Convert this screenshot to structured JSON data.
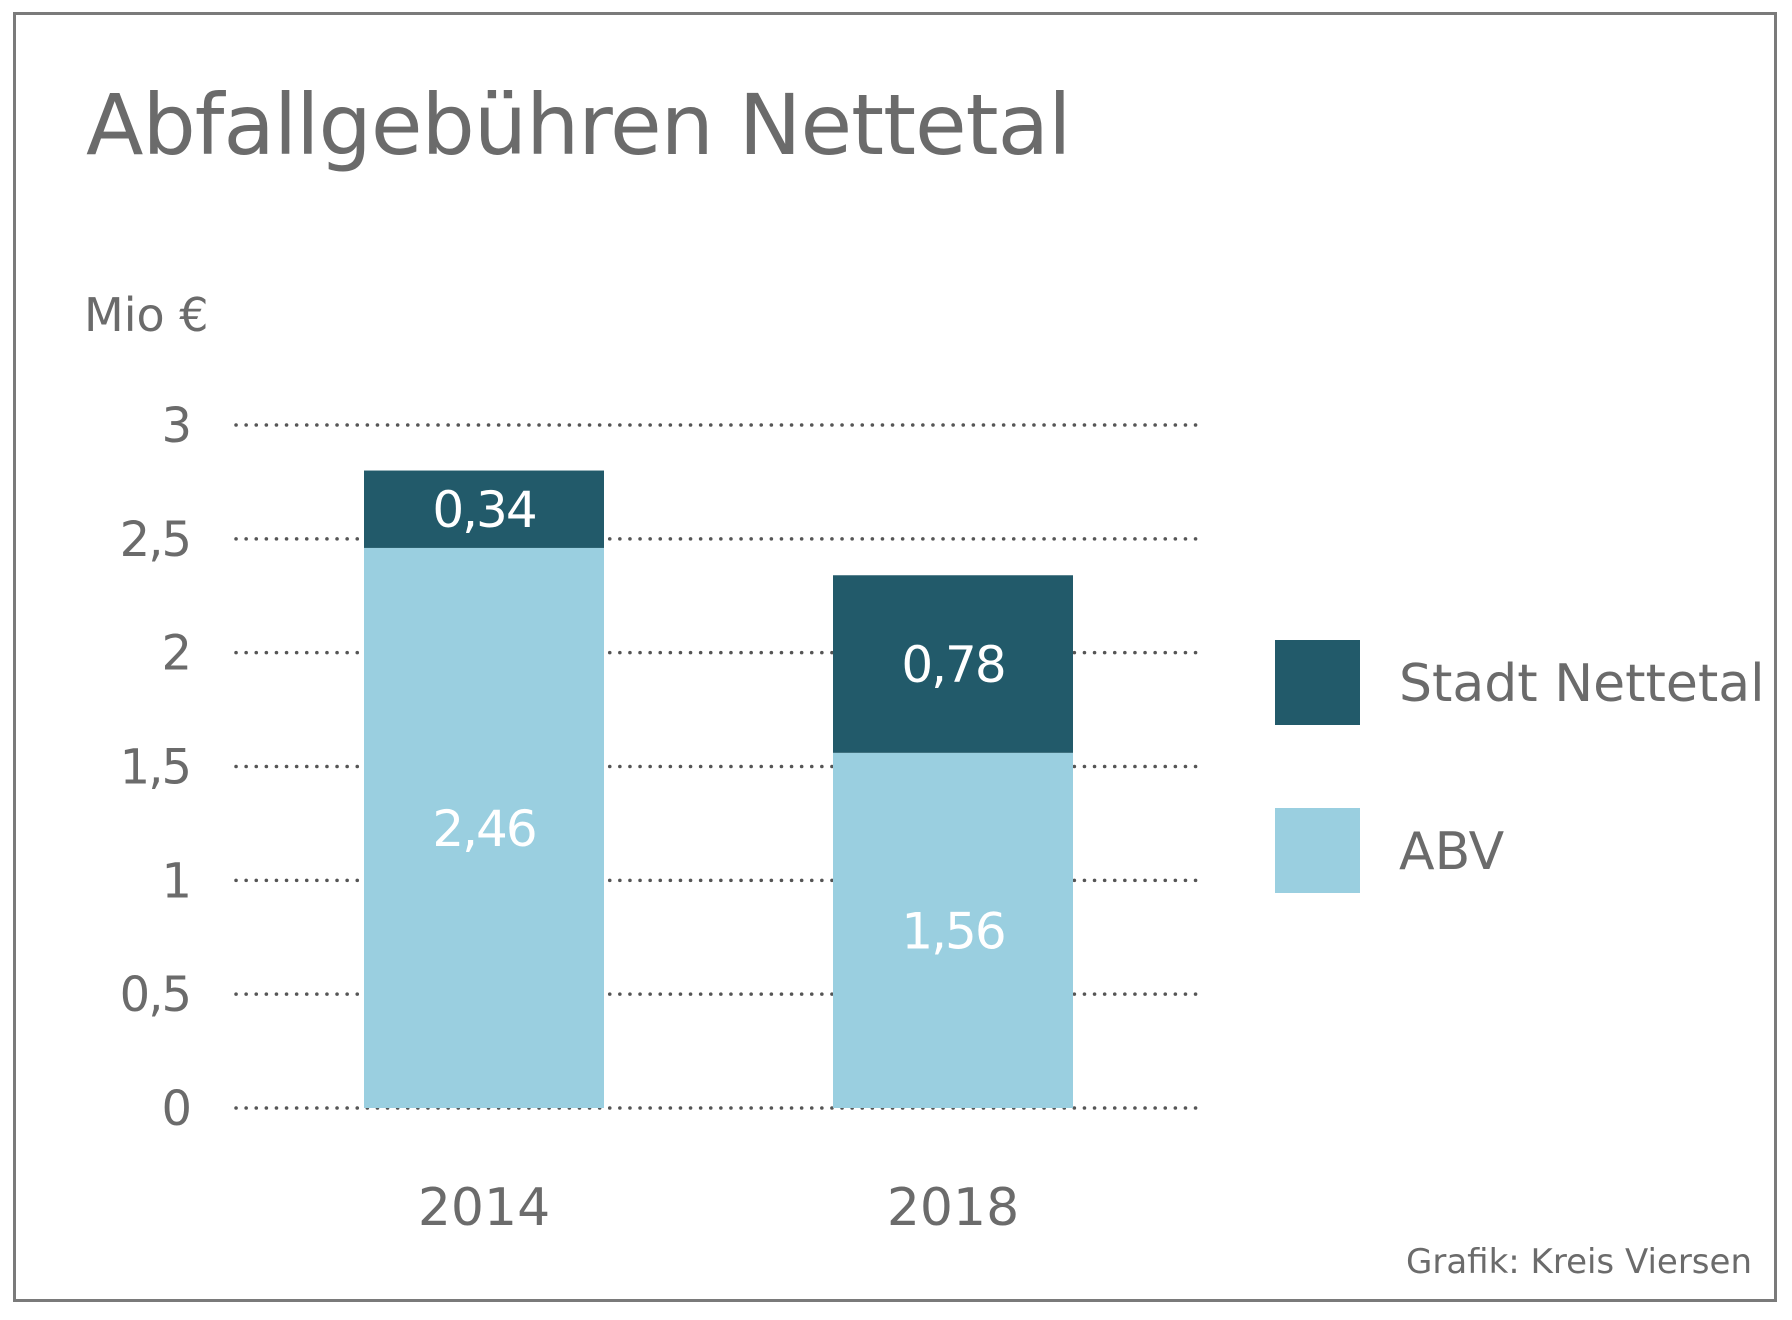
{
  "chart_data": {
    "type": "bar",
    "stacked": true,
    "title": "Abfallgebühren Nettetal",
    "ylabel": "Mio €",
    "xlabel": "",
    "categories": [
      "2014",
      "2018"
    ],
    "series": [
      {
        "name": "ABV",
        "values": [
          2.46,
          1.56
        ],
        "labels": [
          "2,46",
          "1,56"
        ],
        "color": "#9acfe0"
      },
      {
        "name": "Stadt Nettetal",
        "values": [
          0.34,
          0.78
        ],
        "labels": [
          "0,34",
          "0,78"
        ],
        "color": "#225a6a"
      }
    ],
    "ylim": [
      0,
      3
    ],
    "yticks": [
      0,
      0.5,
      1,
      1.5,
      2,
      2.5,
      3
    ],
    "ytick_labels": [
      "0",
      "0,5",
      "1",
      "1,5",
      "2",
      "2,5",
      "3"
    ],
    "grid": "dotted horizontal",
    "legend_position": "right",
    "legend": [
      {
        "label": "Stadt Nettetal",
        "color": "#225a6a"
      },
      {
        "label": "ABV",
        "color": "#9acfe0"
      }
    ],
    "source": "Grafik: Kreis Viersen"
  }
}
